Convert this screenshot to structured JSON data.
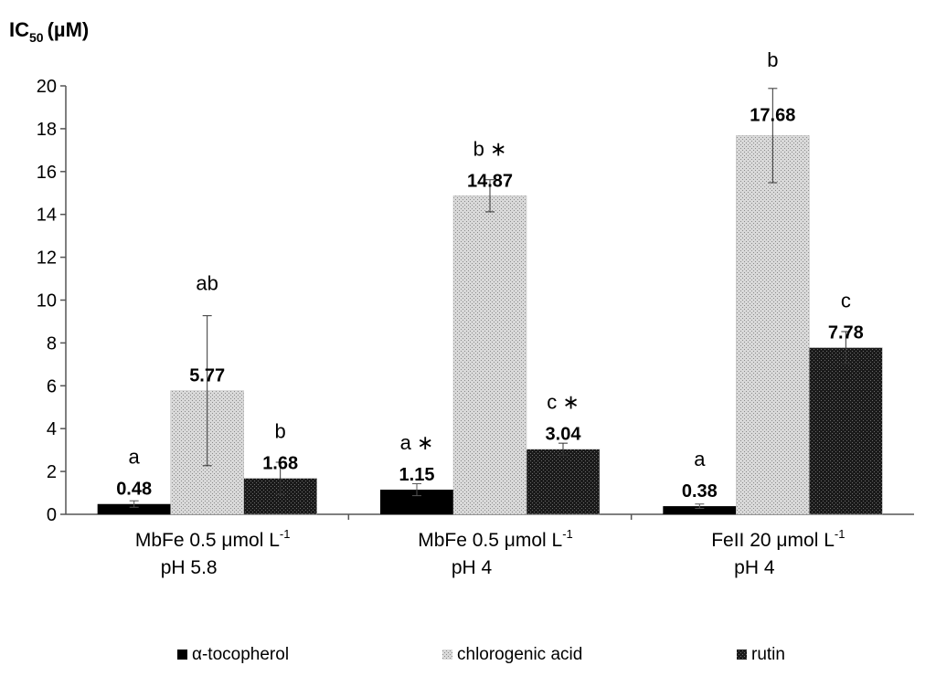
{
  "chart_data": {
    "type": "bar",
    "ylabel": "IC",
    "ylabel_sub": "50",
    "ylabel_unit": "(µM)",
    "ylim": [
      0,
      20
    ],
    "yticks": [
      0,
      2,
      4,
      6,
      8,
      10,
      12,
      14,
      16,
      18,
      20
    ],
    "grid": false,
    "legend_position": "bottom",
    "categories": [
      {
        "line1": "MbFe 0.5 μmol L",
        "sup": "-1",
        "line2": "pH 5.8"
      },
      {
        "line1": "MbFe 0.5 μmol L",
        "sup": "-1",
        "line2": "pH 4"
      },
      {
        "line1": "FeII 20 μmol L",
        "sup": "-1",
        "line2": "pH 4"
      }
    ],
    "series": [
      {
        "name": "α-tocopherol",
        "color": "#000000",
        "pattern": "solid",
        "values": [
          0.48,
          1.15,
          0.38
        ],
        "value_labels": [
          "0.48",
          "1.15",
          "0.38"
        ],
        "errors": [
          0.15,
          0.28,
          0.1
        ],
        "letters": [
          "a",
          "a ∗",
          "a"
        ]
      },
      {
        "name": "chlorogenic acid",
        "color": "#cfcfcf",
        "pattern": "light-dotted",
        "values": [
          5.77,
          14.87,
          17.68
        ],
        "value_labels": [
          "5.77",
          "14.87",
          "17.68"
        ],
        "errors": [
          3.5,
          0.75,
          2.2
        ],
        "letters": [
          "ab",
          "b ∗",
          "b"
        ]
      },
      {
        "name": "rutin",
        "color": "#2a2a2a",
        "pattern": "dark-dotted",
        "values": [
          1.68,
          3.04,
          7.78
        ],
        "value_labels": [
          "1.68",
          "3.04",
          "7.78"
        ],
        "errors": [
          0.75,
          0.28,
          0.75
        ],
        "letters": [
          "b",
          "c ∗",
          "c"
        ]
      }
    ]
  }
}
